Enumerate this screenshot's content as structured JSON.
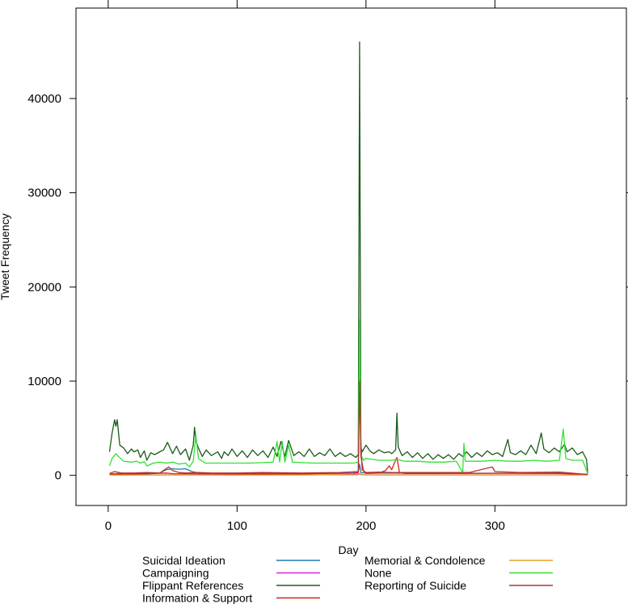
{
  "chart_data": {
    "type": "line",
    "xlabel": "Day",
    "ylabel": "Tweet Frequency",
    "xlim": [
      -25,
      402
    ],
    "ylim": [
      -3200,
      49600
    ],
    "x_ticks": [
      0,
      100,
      200,
      300
    ],
    "y_ticks": [
      0,
      10000,
      20000,
      30000,
      40000
    ],
    "legend_position": "bottom",
    "series": [
      {
        "name": "Suicidal Ideation",
        "color": "#1f78b4",
        "points": [
          [
            1,
            150
          ],
          [
            10,
            200
          ],
          [
            20,
            180
          ],
          [
            30,
            160
          ],
          [
            40,
            250
          ],
          [
            45,
            600
          ],
          [
            50,
            700
          ],
          [
            55,
            650
          ],
          [
            60,
            700
          ],
          [
            65,
            400
          ],
          [
            70,
            250
          ],
          [
            80,
            200
          ],
          [
            100,
            200
          ],
          [
            150,
            200
          ],
          [
            190,
            250
          ],
          [
            194,
            300
          ],
          [
            195,
            1200
          ],
          [
            196,
            300
          ],
          [
            200,
            250
          ],
          [
            250,
            220
          ],
          [
            300,
            230
          ],
          [
            350,
            240
          ],
          [
            372,
            100
          ]
        ]
      },
      {
        "name": "Campaigning",
        "color": "#e020e0",
        "points": [
          [
            1,
            40
          ],
          [
            50,
            60
          ],
          [
            100,
            50
          ],
          [
            150,
            60
          ],
          [
            194,
            80
          ],
          [
            195,
            200
          ],
          [
            196,
            80
          ],
          [
            200,
            60
          ],
          [
            250,
            60
          ],
          [
            300,
            60
          ],
          [
            350,
            60
          ],
          [
            372,
            40
          ]
        ]
      },
      {
        "name": "Flippant References",
        "color": "#1a5c1a",
        "points": [
          [
            1,
            2500
          ],
          [
            3,
            4500
          ],
          [
            5,
            5900
          ],
          [
            6,
            5200
          ],
          [
            7,
            5900
          ],
          [
            9,
            3200
          ],
          [
            12,
            2900
          ],
          [
            15,
            2300
          ],
          [
            18,
            2800
          ],
          [
            20,
            2500
          ],
          [
            23,
            2700
          ],
          [
            25,
            1900
          ],
          [
            28,
            2600
          ],
          [
            30,
            1600
          ],
          [
            33,
            2400
          ],
          [
            36,
            2200
          ],
          [
            40,
            2500
          ],
          [
            43,
            2700
          ],
          [
            46,
            3500
          ],
          [
            48,
            2900
          ],
          [
            50,
            2300
          ],
          [
            53,
            3100
          ],
          [
            56,
            2200
          ],
          [
            60,
            2800
          ],
          [
            63,
            1600
          ],
          [
            66,
            3200
          ],
          [
            67,
            5100
          ],
          [
            68,
            3700
          ],
          [
            70,
            2900
          ],
          [
            73,
            2000
          ],
          [
            76,
            2700
          ],
          [
            80,
            2100
          ],
          [
            85,
            2500
          ],
          [
            88,
            1800
          ],
          [
            90,
            2500
          ],
          [
            93,
            2100
          ],
          [
            96,
            2800
          ],
          [
            100,
            2000
          ],
          [
            104,
            2600
          ],
          [
            108,
            1900
          ],
          [
            112,
            2700
          ],
          [
            116,
            2100
          ],
          [
            120,
            2600
          ],
          [
            124,
            1900
          ],
          [
            128,
            3000
          ],
          [
            131,
            2000
          ],
          [
            134,
            3600
          ],
          [
            137,
            2000
          ],
          [
            140,
            3700
          ],
          [
            144,
            2100
          ],
          [
            148,
            2500
          ],
          [
            152,
            2000
          ],
          [
            156,
            2800
          ],
          [
            160,
            2000
          ],
          [
            164,
            2400
          ],
          [
            168,
            2100
          ],
          [
            172,
            2800
          ],
          [
            176,
            2000
          ],
          [
            180,
            2400
          ],
          [
            184,
            2000
          ],
          [
            188,
            2300
          ],
          [
            192,
            1900
          ],
          [
            194,
            2200
          ],
          [
            195,
            46000
          ],
          [
            196,
            3000
          ],
          [
            197,
            2500
          ],
          [
            200,
            3200
          ],
          [
            203,
            2600
          ],
          [
            206,
            2300
          ],
          [
            210,
            2700
          ],
          [
            214,
            2400
          ],
          [
            218,
            2500
          ],
          [
            220,
            2300
          ],
          [
            223,
            2700
          ],
          [
            224,
            6600
          ],
          [
            225,
            3000
          ],
          [
            228,
            2100
          ],
          [
            232,
            2500
          ],
          [
            236,
            1900
          ],
          [
            240,
            2400
          ],
          [
            244,
            1800
          ],
          [
            248,
            2300
          ],
          [
            252,
            1700
          ],
          [
            256,
            2200
          ],
          [
            260,
            1800
          ],
          [
            264,
            2200
          ],
          [
            268,
            1700
          ],
          [
            272,
            2300
          ],
          [
            275,
            2000
          ],
          [
            278,
            2500
          ],
          [
            282,
            1900
          ],
          [
            286,
            2400
          ],
          [
            290,
            2000
          ],
          [
            294,
            2600
          ],
          [
            298,
            2200
          ],
          [
            302,
            2400
          ],
          [
            306,
            2000
          ],
          [
            310,
            3800
          ],
          [
            312,
            2400
          ],
          [
            316,
            2200
          ],
          [
            320,
            2600
          ],
          [
            324,
            2200
          ],
          [
            328,
            3200
          ],
          [
            332,
            2300
          ],
          [
            336,
            4500
          ],
          [
            338,
            2800
          ],
          [
            342,
            2400
          ],
          [
            346,
            2900
          ],
          [
            350,
            2500
          ],
          [
            354,
            3300
          ],
          [
            356,
            2500
          ],
          [
            360,
            2900
          ],
          [
            364,
            2200
          ],
          [
            368,
            2500
          ],
          [
            371,
            1700
          ],
          [
            372,
            200
          ]
        ]
      },
      {
        "name": "Information & Support",
        "color": "#d42020",
        "points": [
          [
            1,
            100
          ],
          [
            20,
            150
          ],
          [
            45,
            250
          ],
          [
            50,
            180
          ],
          [
            100,
            150
          ],
          [
            150,
            150
          ],
          [
            190,
            200
          ],
          [
            194,
            300
          ],
          [
            195,
            13000
          ],
          [
            196,
            3600
          ],
          [
            197,
            600
          ],
          [
            200,
            200
          ],
          [
            210,
            250
          ],
          [
            215,
            500
          ],
          [
            218,
            1000
          ],
          [
            220,
            600
          ],
          [
            222,
            1300
          ],
          [
            224,
            1900
          ],
          [
            226,
            300
          ],
          [
            230,
            200
          ],
          [
            250,
            200
          ],
          [
            300,
            220
          ],
          [
            350,
            200
          ],
          [
            372,
            100
          ]
        ]
      },
      {
        "name": "Memorial & Condolence",
        "color": "#e6a020",
        "points": [
          [
            1,
            30
          ],
          [
            50,
            40
          ],
          [
            100,
            30
          ],
          [
            150,
            40
          ],
          [
            195,
            150
          ],
          [
            200,
            40
          ],
          [
            250,
            40
          ],
          [
            300,
            40
          ],
          [
            350,
            40
          ],
          [
            372,
            20
          ]
        ]
      },
      {
        "name": "None",
        "color": "#33e033",
        "points": [
          [
            1,
            1000
          ],
          [
            3,
            1800
          ],
          [
            6,
            2300
          ],
          [
            8,
            2000
          ],
          [
            12,
            1500
          ],
          [
            18,
            1400
          ],
          [
            22,
            1500
          ],
          [
            25,
            1300
          ],
          [
            28,
            1450
          ],
          [
            30,
            1000
          ],
          [
            35,
            1300
          ],
          [
            40,
            1400
          ],
          [
            45,
            1300
          ],
          [
            50,
            1400
          ],
          [
            55,
            1200
          ],
          [
            60,
            1300
          ],
          [
            63,
            900
          ],
          [
            66,
            1500
          ],
          [
            68,
            4300
          ],
          [
            70,
            1800
          ],
          [
            75,
            1300
          ],
          [
            80,
            1300
          ],
          [
            90,
            1300
          ],
          [
            100,
            1300
          ],
          [
            110,
            1300
          ],
          [
            120,
            1350
          ],
          [
            128,
            1400
          ],
          [
            131,
            3600
          ],
          [
            133,
            1400
          ],
          [
            135,
            3600
          ],
          [
            137,
            1400
          ],
          [
            140,
            3200
          ],
          [
            143,
            1400
          ],
          [
            150,
            1350
          ],
          [
            160,
            1300
          ],
          [
            170,
            1300
          ],
          [
            180,
            1300
          ],
          [
            190,
            1300
          ],
          [
            194,
            1400
          ],
          [
            195,
            16500
          ],
          [
            196,
            2200
          ],
          [
            198,
            1600
          ],
          [
            200,
            1800
          ],
          [
            210,
            1600
          ],
          [
            220,
            1600
          ],
          [
            224,
            1700
          ],
          [
            230,
            1500
          ],
          [
            240,
            1500
          ],
          [
            250,
            1400
          ],
          [
            260,
            1400
          ],
          [
            270,
            1500
          ],
          [
            275,
            300
          ],
          [
            276,
            3400
          ],
          [
            277,
            1500
          ],
          [
            280,
            1500
          ],
          [
            290,
            1500
          ],
          [
            300,
            1600
          ],
          [
            310,
            1500
          ],
          [
            320,
            1500
          ],
          [
            330,
            1600
          ],
          [
            340,
            1500
          ],
          [
            350,
            1600
          ],
          [
            353,
            4900
          ],
          [
            355,
            1800
          ],
          [
            360,
            1600
          ],
          [
            368,
            1600
          ],
          [
            372,
            200
          ]
        ]
      },
      {
        "name": "Reporting of Suicide",
        "color": "#b23434",
        "points": [
          [
            1,
            200
          ],
          [
            5,
            400
          ],
          [
            10,
            250
          ],
          [
            20,
            250
          ],
          [
            30,
            300
          ],
          [
            40,
            250
          ],
          [
            47,
            900
          ],
          [
            50,
            500
          ],
          [
            55,
            300
          ],
          [
            60,
            250
          ],
          [
            70,
            300
          ],
          [
            80,
            250
          ],
          [
            100,
            250
          ],
          [
            120,
            300
          ],
          [
            150,
            250
          ],
          [
            180,
            300
          ],
          [
            194,
            400
          ],
          [
            195,
            10000
          ],
          [
            196,
            2000
          ],
          [
            198,
            500
          ],
          [
            200,
            300
          ],
          [
            210,
            350
          ],
          [
            220,
            300
          ],
          [
            250,
            300
          ],
          [
            280,
            300
          ],
          [
            298,
            900
          ],
          [
            300,
            400
          ],
          [
            320,
            300
          ],
          [
            350,
            350
          ],
          [
            372,
            100
          ]
        ]
      }
    ]
  }
}
